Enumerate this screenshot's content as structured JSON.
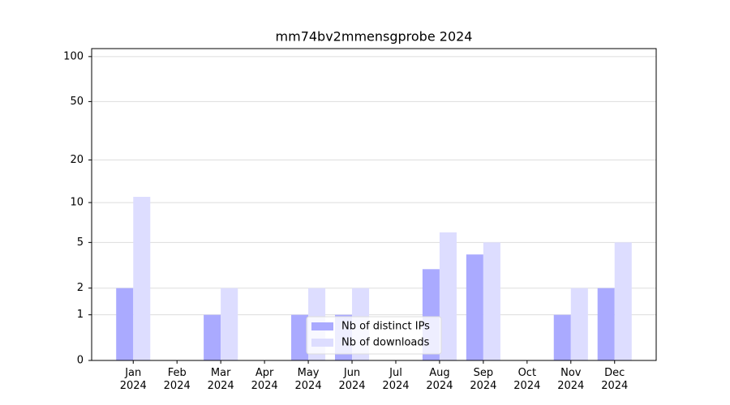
{
  "chart_data": {
    "type": "bar",
    "title": "mm74bv2mmensgprobe 2024",
    "categories": [
      "Jan\n2024",
      "Feb\n2024",
      "Mar\n2024",
      "Apr\n2024",
      "May\n2024",
      "Jun\n2024",
      "Jul\n2024",
      "Aug\n2024",
      "Sep\n2024",
      "Oct\n2024",
      "Nov\n2024",
      "Dec\n2024"
    ],
    "series": [
      {
        "name": "Nb of distinct IPs",
        "color": "#aaaaff",
        "values": [
          2,
          0,
          1,
          0,
          1,
          1,
          0,
          3,
          4,
          0,
          1,
          2
        ]
      },
      {
        "name": "Nb of downloads",
        "color": "#ddddff",
        "values": [
          11,
          0,
          2,
          0,
          2,
          2,
          0,
          6,
          5,
          0,
          2,
          5
        ]
      }
    ],
    "ylim": [
      0,
      113
    ],
    "yticks": [
      0,
      1,
      2,
      5,
      10,
      20,
      50,
      100
    ],
    "yscale": "symlog",
    "grid": true,
    "legend": "lower center"
  }
}
